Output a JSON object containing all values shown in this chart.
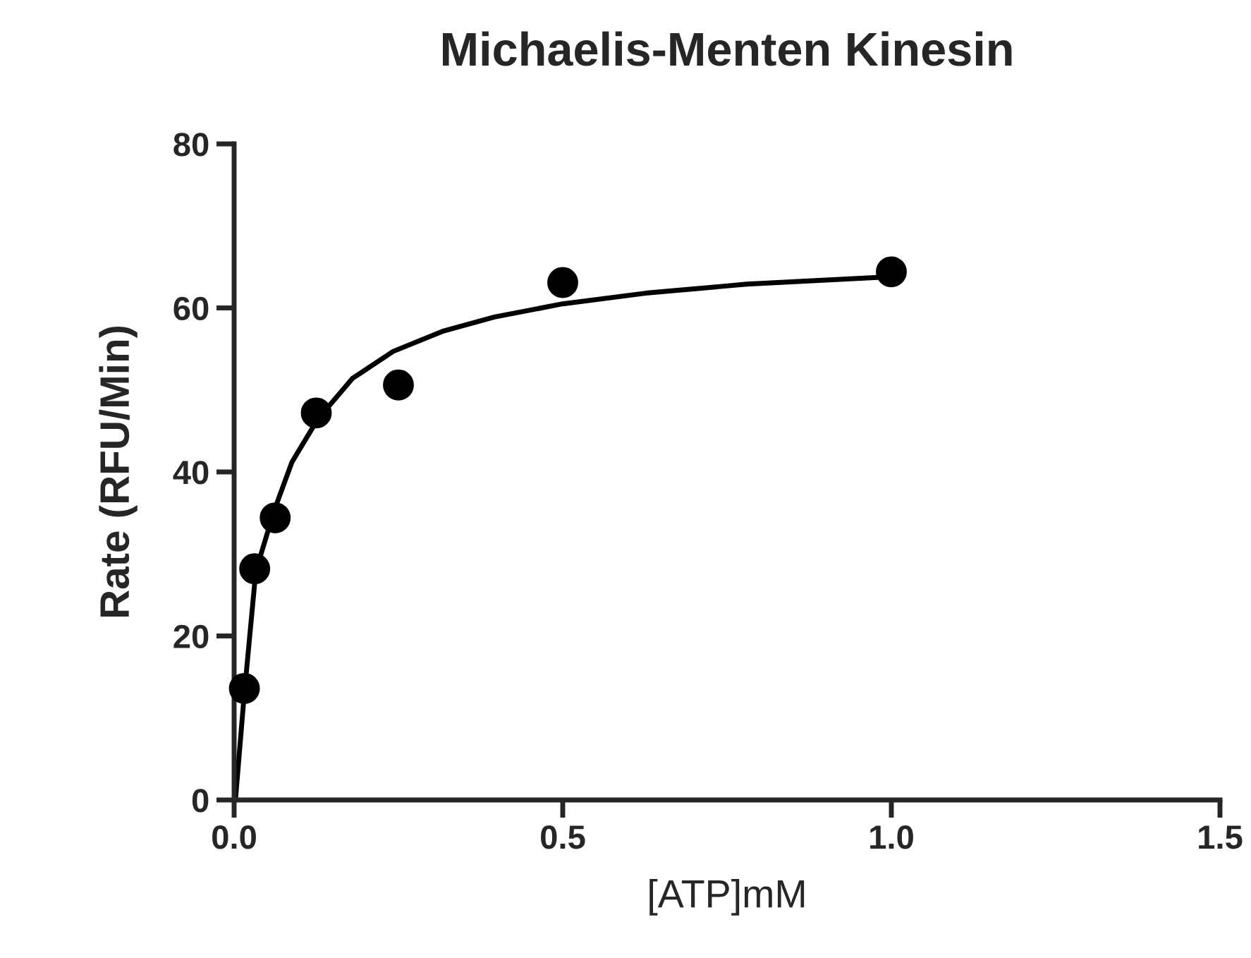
{
  "chart_data": {
    "type": "scatter",
    "title": "Michaelis-Menten Kinesin",
    "xlabel": "[ATP]mM",
    "ylabel": "Rate (RFU/Min)",
    "series": [
      {
        "color": "#000000",
        "marker": "circle",
        "x": [
          0.0156,
          0.0313,
          0.0625,
          0.125,
          0.25,
          0.5,
          1.0
        ],
        "values": [
          13.6,
          28.2,
          34.4,
          47.2,
          50.6,
          63.1,
          64.4
        ]
      },
      {
        "type": "line",
        "color": "#000000",
        "line_style": "solid",
        "x": [
          0.002,
          0.015,
          0.033,
          0.061,
          0.088,
          0.127,
          0.18,
          0.242,
          0.319,
          0.396,
          0.5,
          0.626,
          0.78,
          1.0
        ],
        "values": [
          0,
          12.5,
          27.9,
          35.3,
          41.2,
          46.4,
          51.4,
          54.7,
          57.2,
          58.9,
          60.5,
          61.8,
          62.9,
          63.8
        ]
      }
    ],
    "xlim": [
      0,
      1.5
    ],
    "xticks": [
      {
        "value": 0,
        "label": "0.0"
      },
      0.5,
      {
        "value": 1,
        "label": "1.0"
      },
      1.5
    ],
    "ylim": [
      0,
      80
    ],
    "yticks": [
      0,
      20,
      40,
      60,
      80
    ],
    "grid": false,
    "legend": false
  }
}
